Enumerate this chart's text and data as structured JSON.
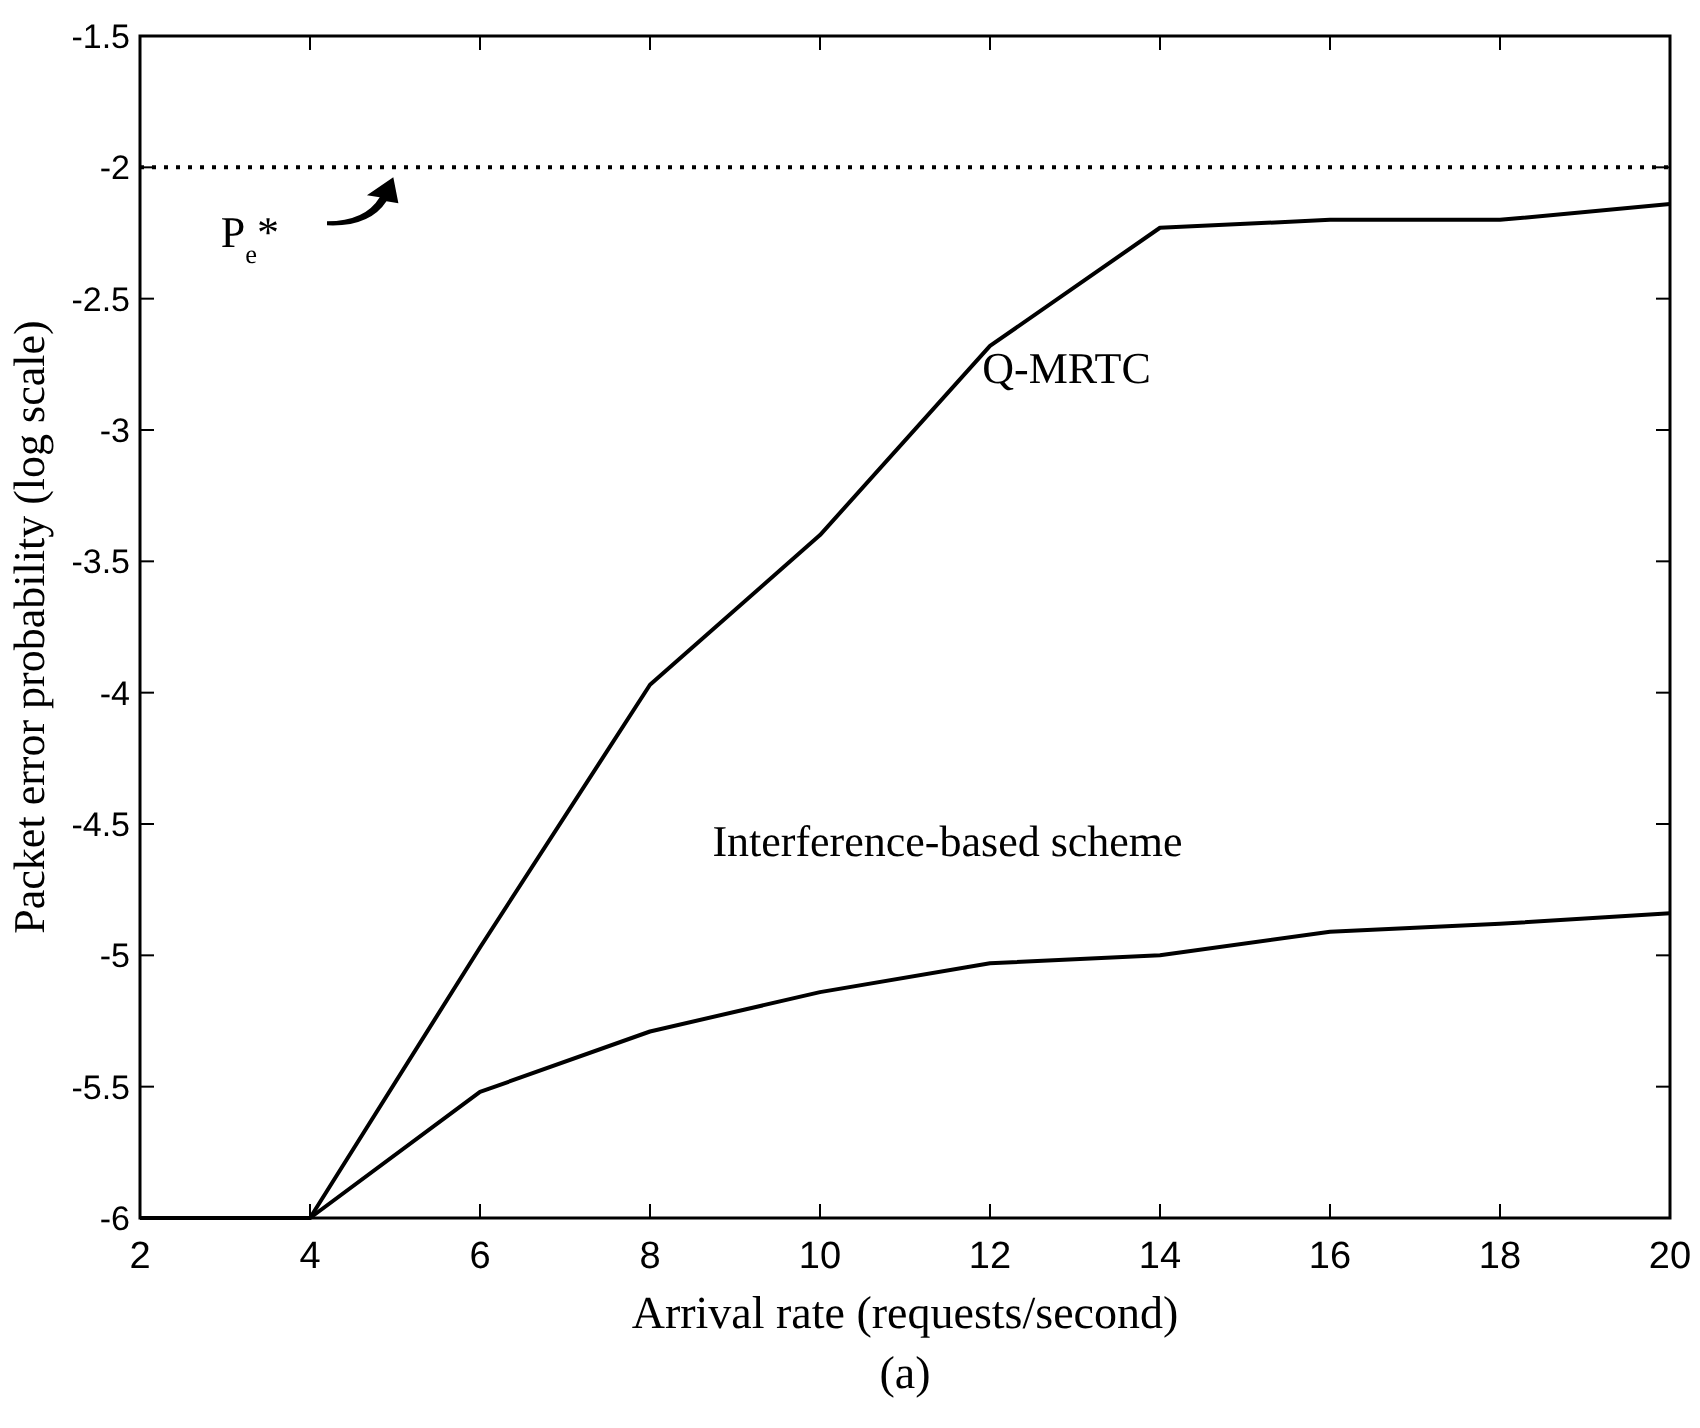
{
  "chart_data": {
    "type": "line",
    "xlabel": "Arrival rate (requests/second)",
    "ylabel": "Packet error probability (log scale)",
    "x": [
      2,
      4,
      6,
      8,
      10,
      12,
      14,
      16,
      18,
      20
    ],
    "series": [
      {
        "name": "Q-MRTC",
        "color": "#000000",
        "values": [
          -6,
          -6,
          -4.97,
          -3.97,
          -3.4,
          -2.68,
          -2.23,
          -2.2,
          -2.2,
          -2.14
        ]
      },
      {
        "name": "Interference-based scheme",
        "color": "#000000",
        "values": [
          -6,
          -6,
          -5.52,
          -5.29,
          -5.14,
          -5.03,
          -5.0,
          -4.91,
          -4.88,
          -4.84
        ]
      }
    ],
    "xlim": [
      2,
      20
    ],
    "xticks": [
      2,
      4,
      6,
      8,
      10,
      12,
      14,
      16,
      18,
      20
    ],
    "ylim": [
      -6,
      -1.5
    ],
    "yticks": [
      -6,
      -5.5,
      -5,
      -4.5,
      -4,
      -3.5,
      -3,
      -2.5,
      -2,
      -1.5
    ],
    "ref_lines": [
      {
        "axis": "y",
        "value": -2,
        "label": "P$_{e}$*",
        "line_style": "dotted",
        "color": "#000000"
      }
    ],
    "annotations": [
      "(a)"
    ],
    "grid": false,
    "marker": "none",
    "line_style": "solid"
  }
}
